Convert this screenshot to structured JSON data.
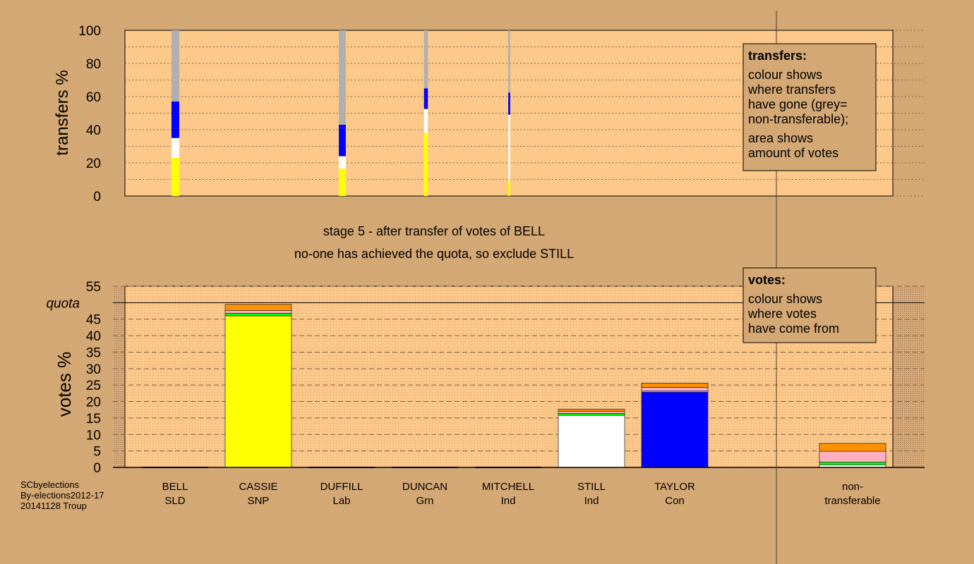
{
  "chart_data": [
    {
      "type": "bar",
      "stacked": true,
      "title": "",
      "ylabel": "transfers %",
      "ylim": [
        0,
        100
      ],
      "yticks": [
        "0",
        "20",
        "40",
        "60",
        "80",
        "100"
      ],
      "grid": "dotted",
      "categories": [
        "BELL",
        "DUFFILL",
        "DUNCAN",
        "MITCHELL"
      ],
      "bar_width_relative": [
        1.0,
        0.9,
        0.5,
        0.25
      ],
      "series": [
        {
          "name": "SNP",
          "color": "#ffff00",
          "values": [
            23,
            16.6,
            38,
            9.5
          ]
        },
        {
          "name": "Ind",
          "color": "#ffffff",
          "values": [
            12,
            7.4,
            14.5,
            39.5
          ]
        },
        {
          "name": "Con",
          "color": "#0000ff",
          "values": [
            22,
            19,
            12.5,
            13.5
          ]
        },
        {
          "name": "non-transferable",
          "color": "#b0b0b0",
          "values": [
            43,
            57,
            35,
            37.5
          ]
        }
      ],
      "legend": {
        "title": "transfers:",
        "lines1": [
          "colour shows",
          "where transfers",
          "have gone (grey=",
          "non-transferable);"
        ],
        "lines2": [
          "area shows",
          "amount of votes"
        ],
        "placement": "top-right"
      }
    },
    {
      "type": "bar",
      "stacked": true,
      "ylabel": "votes %",
      "ylim": [
        0,
        55
      ],
      "yticks": [
        "0",
        "5",
        "10",
        "15",
        "20",
        "25",
        "30",
        "35",
        "40",
        "45",
        "50",
        "55"
      ],
      "quota": {
        "label": "quota",
        "value": 50
      },
      "categories": [
        {
          "name": "BELL",
          "party": "SLD"
        },
        {
          "name": "CASSIE",
          "party": "SNP"
        },
        {
          "name": "DUFFILL",
          "party": "Lab"
        },
        {
          "name": "DUNCAN",
          "party": "Grn"
        },
        {
          "name": "MITCHELL",
          "party": "Ind"
        },
        {
          "name": "STILL",
          "party": "Ind"
        },
        {
          "name": "TAYLOR",
          "party": "Con"
        },
        {
          "name": "non-",
          "party": "transferable"
        }
      ],
      "segments": [
        [],
        [
          {
            "color": "#ffff00",
            "value": 46.0
          },
          {
            "color": "#00ff00",
            "value": 0.8
          },
          {
            "color": "#ffb0c0",
            "value": 0.8
          },
          {
            "color": "#ff9000",
            "value": 1.9
          }
        ],
        [],
        [],
        [],
        [
          {
            "color": "#ffffff",
            "value": 15.8
          },
          {
            "color": "#00ff00",
            "value": 0.6
          },
          {
            "color": "#ffb0c0",
            "value": 0.6
          },
          {
            "color": "#ff9000",
            "value": 0.7
          }
        ],
        [
          {
            "color": "#0000ff",
            "value": 22.9
          },
          {
            "color": "#ffffff",
            "value": 0.3
          },
          {
            "color": "#ffb0c0",
            "value": 1.1
          },
          {
            "color": "#ff9000",
            "value": 1.3
          }
        ],
        [
          {
            "color": "#ffffff",
            "value": 0.8
          },
          {
            "color": "#00ff00",
            "value": 0.8
          },
          {
            "color": "#ffb0c0",
            "value": 3.3
          },
          {
            "color": "#ff9000",
            "value": 2.4
          }
        ]
      ],
      "legend": {
        "title": "votes:",
        "lines": [
          "colour shows",
          "where votes",
          "have come from"
        ],
        "placement": "top-right"
      }
    }
  ],
  "stage_title": "stage 5 - after transfer of votes of BELL",
  "stage_subtitle": "no-one has achieved the quota, so exclude STILL",
  "footer": [
    "SCbyelections",
    "By-elections2012-17",
    "20141128 Troup"
  ]
}
